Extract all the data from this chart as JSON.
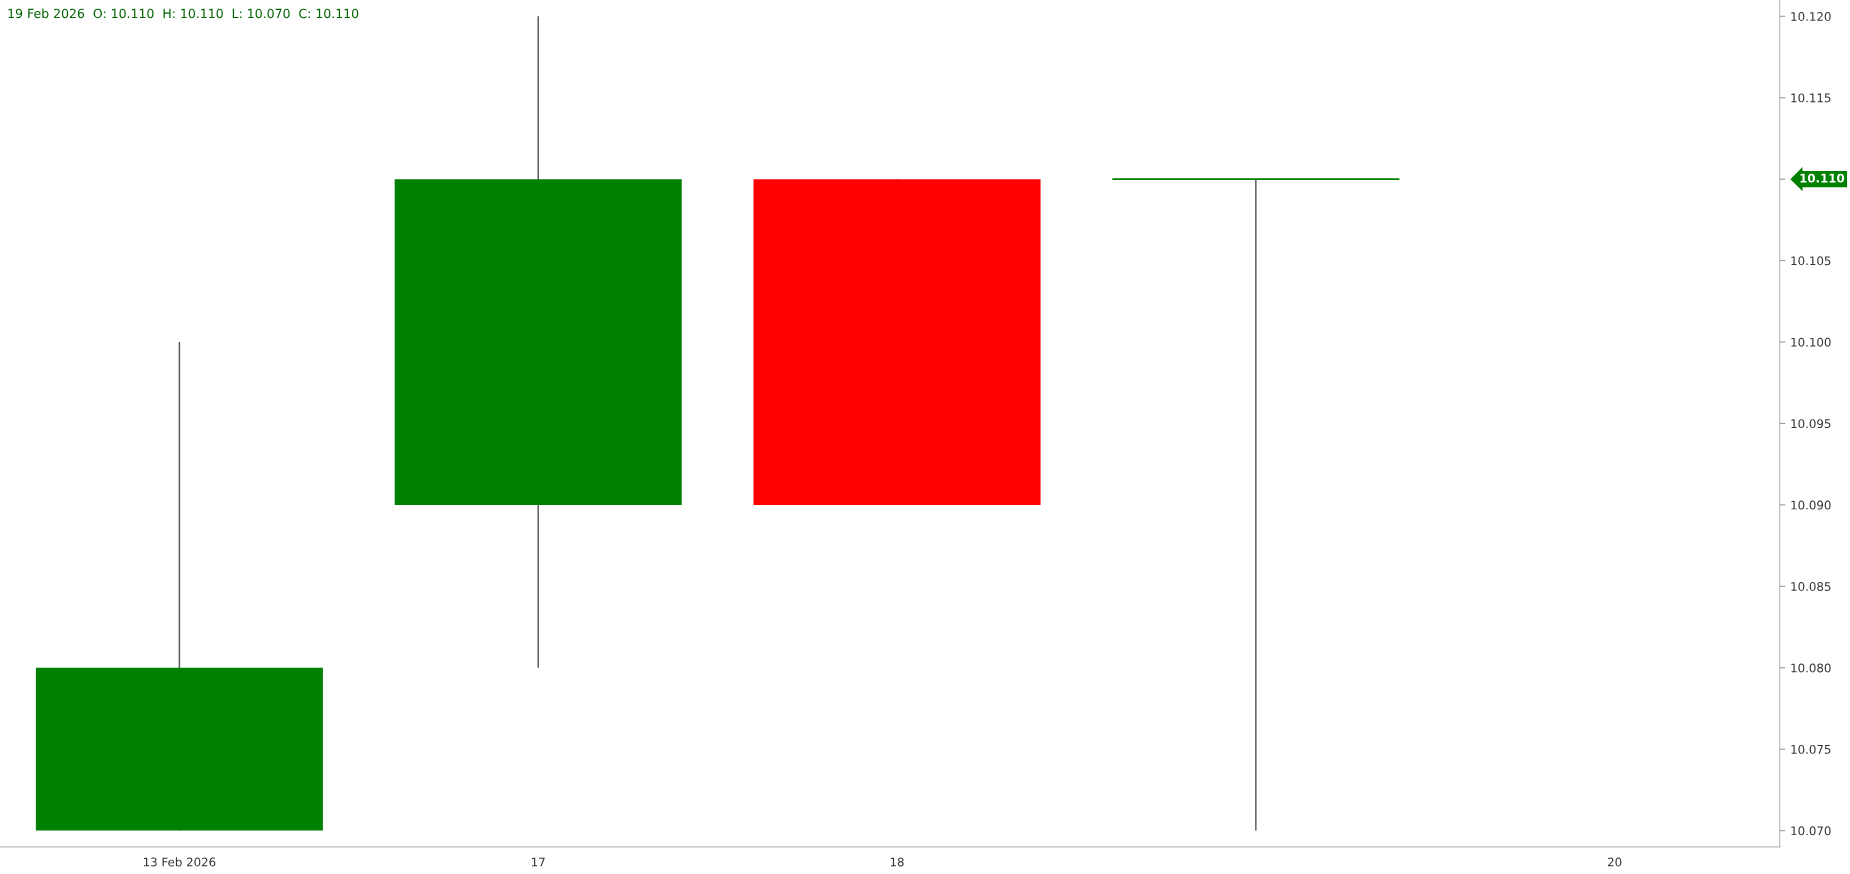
{
  "chart_data": {
    "type": "candlestick",
    "categories": [
      "13 Feb 2026",
      "17",
      "18",
      null,
      "20"
    ],
    "ohlc": [
      [
        10.07,
        10.1,
        10.07,
        10.08
      ],
      [
        10.09,
        10.12,
        10.08,
        10.11
      ],
      [
        10.11,
        10.11,
        10.09,
        10.09
      ],
      [
        10.11,
        10.11,
        10.07,
        10.11
      ],
      null
    ],
    "colors": [
      "#008000",
      "#008000",
      "#ff0000",
      "#008000",
      null
    ],
    "ylim": [
      10.069,
      10.121
    ],
    "yticks": [
      {
        "value": 10.07,
        "label": "10.070"
      },
      {
        "value": 10.075,
        "label": "10.075"
      },
      {
        "value": 10.08,
        "label": "10.080"
      },
      {
        "value": 10.085,
        "label": "10.085"
      },
      {
        "value": 10.09,
        "label": "10.090"
      },
      {
        "value": 10.095,
        "label": "10.095"
      },
      {
        "value": 10.1,
        "label": "10.100"
      },
      {
        "value": 10.105,
        "label": "10.105"
      },
      {
        "value": 10.11,
        "label": null
      },
      {
        "value": 10.115,
        "label": "10.115"
      },
      {
        "value": 10.12,
        "label": "10.120"
      }
    ],
    "annotations": [
      "19 Feb 2026  O: 10.110  H: 10.110  L: 10.070  C: 10.110",
      "10.110"
    ],
    "grid": false
  }
}
